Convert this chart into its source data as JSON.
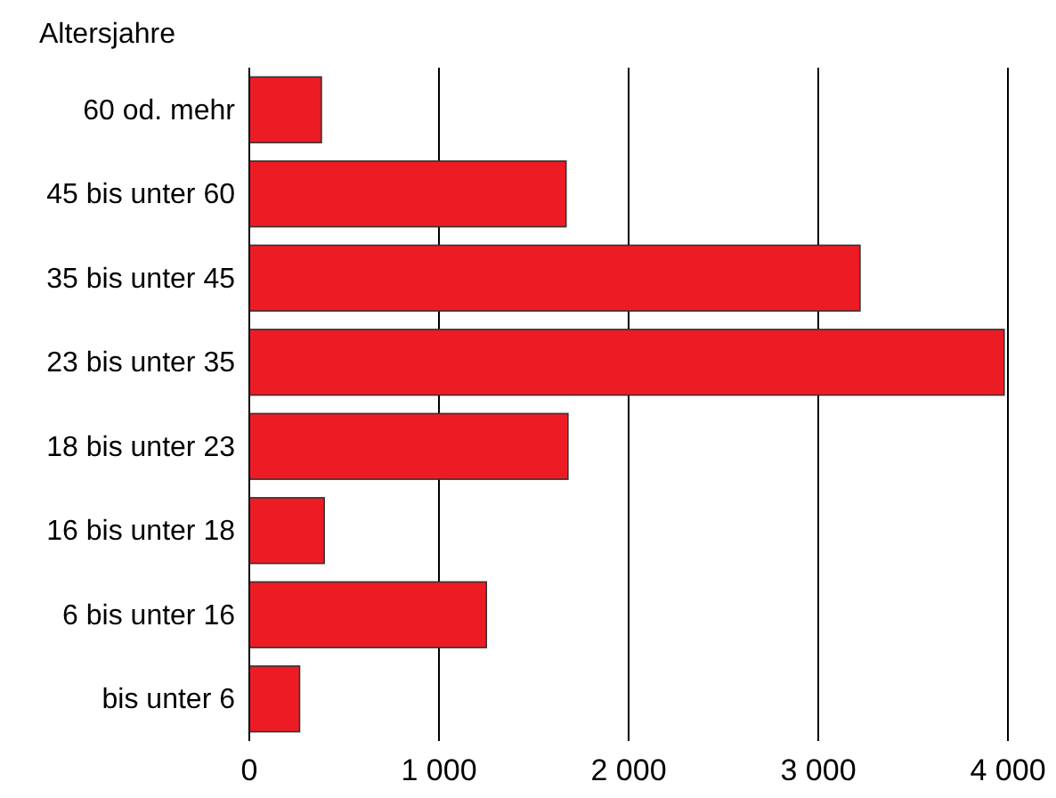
{
  "chart_data": {
    "type": "bar",
    "orientation": "horizontal",
    "ylabel": "Altersjahre",
    "categories": [
      "60 od. mehr",
      "45 bis unter 60",
      "35 bis unter 45",
      "23 bis unter 35",
      "18 bis unter 23",
      "16 bis unter 18",
      "6 bis unter 16",
      "bis unter 6"
    ],
    "values": [
      380,
      1670,
      3220,
      3980,
      1680,
      395,
      1250,
      265
    ],
    "color": "#ed1c24",
    "xlim": [
      0,
      4000
    ],
    "xticks": [
      0,
      {
        "value": 1000,
        "label": "1 000"
      },
      {
        "value": 2000,
        "label": "2 000"
      },
      {
        "value": 3000,
        "label": "3 000"
      },
      {
        "value": 4000,
        "label": "4 000"
      }
    ],
    "grid": "x"
  }
}
